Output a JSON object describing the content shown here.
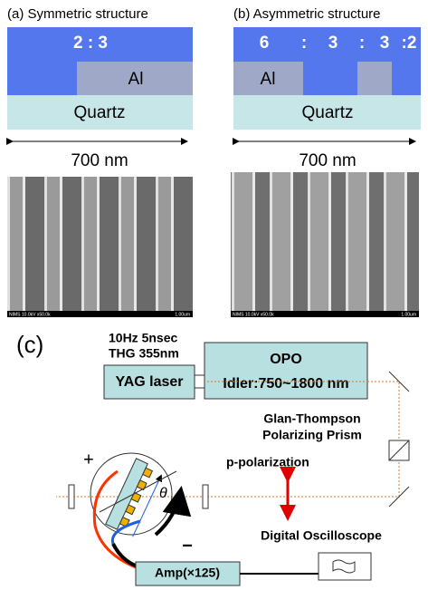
{
  "panel_a": {
    "label": "(a) Symmetric structure",
    "ratio": "2 : 3",
    "material": "Al",
    "substrate": "Quartz",
    "width": "700 nm",
    "sem": {
      "info": "NIMS 10.0kV x50.0k",
      "scale": "1.00um"
    }
  },
  "panel_b": {
    "label": "(b) Asymmetric structure",
    "ratio_parts": [
      "6",
      ":",
      "3",
      ":",
      "3",
      ":2"
    ],
    "material": "Al",
    "substrate": "Quartz",
    "width": "700 nm",
    "sem": {
      "info": "NIMS 10.0kV x50.0k",
      "scale": "1.00um"
    }
  },
  "panel_c": {
    "label": "(c)",
    "pulse": [
      "10Hz  5nsec",
      "THG 355nm"
    ],
    "laser": "YAG laser",
    "opo": [
      "OPO",
      "Idler:750~1800 nm"
    ],
    "prism": [
      "Glan-Thompson",
      "Polarizing Prism"
    ],
    "polarization": "p-polarization",
    "plus": "+",
    "angle": "θ",
    "minus": "−",
    "oscilloscope": "Digital Oscilloscope",
    "amp": "Amp(×125)"
  }
}
